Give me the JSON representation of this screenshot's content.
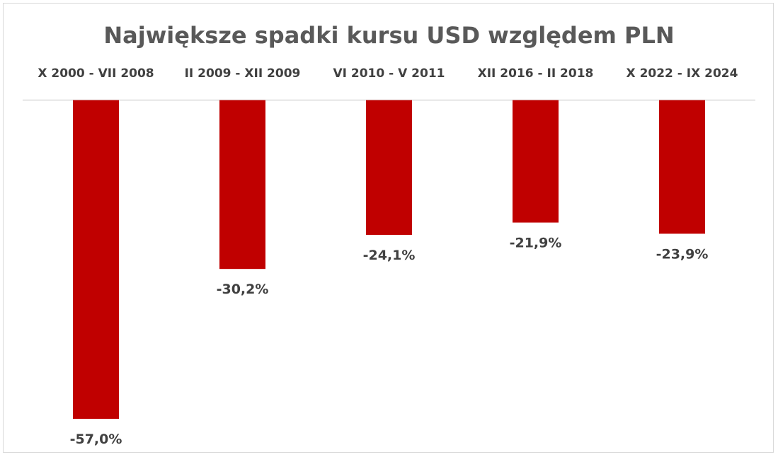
{
  "chart_data": {
    "type": "bar",
    "title": "Największe spadki kursu USD względem PLN",
    "xlabel": "",
    "ylabel": "",
    "categories": [
      "X 2000 - VII 2008",
      "II 2009 - XII 2009",
      "VI 2010 - V 2011",
      "XII 2016 - II 2018",
      "X 2022 - IX 2024"
    ],
    "values": [
      -57.0,
      -30.2,
      -24.1,
      -21.9,
      -23.9
    ],
    "value_labels": [
      "-57,0%",
      "-30,2%",
      "-24,1%",
      "-21,9%",
      "-23,9%"
    ],
    "ylim": [
      -57.0,
      0
    ],
    "bar_color": "#c00000",
    "axis_color": "#d9d9d9",
    "grid": false,
    "category_labels_position": "top"
  }
}
